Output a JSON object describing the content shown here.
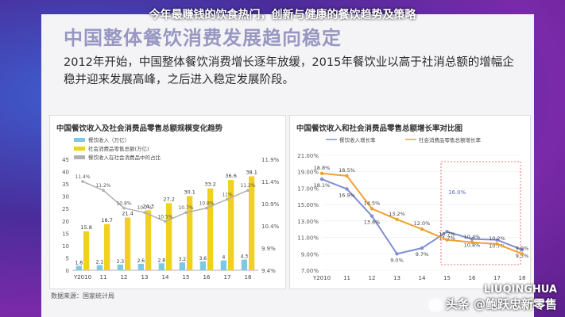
{
  "page": {
    "overlay_title": "今年最赚钱的饮食热门，创新与健康的餐饮趋势及策略",
    "slide_header": "中国整体餐饮消费发展趋向稳定",
    "slide_body": "2012年开始，中国整体餐饮消费增长逐年放缓，2015年餐饮业以高于社消总额的增幅企稳并迎来发展高峰，之后进入稳定发展阶段。",
    "source": "数据来源：国家统计局",
    "watermark_brand": "LIUQINGHUA",
    "watermark_text": "头条 @鲍跃忠新零售"
  },
  "chart_data": [
    {
      "type": "bar",
      "title": "中国餐饮收入及社会消费品零售总额规模变化趋势",
      "categories": [
        "Y2010",
        "11",
        "12",
        "13",
        "14",
        "15",
        "16",
        "17",
        "18"
      ],
      "series": [
        {
          "name": "餐饮收入（万亿）",
          "color": "#7ec8e3",
          "values": [
            1.8,
            2.1,
            2.3,
            2.6,
            2.8,
            3.2,
            3.6,
            4.0,
            4.3
          ]
        },
        {
          "name": "社会消费品零售总额(万亿)",
          "color": "#f0d020",
          "values": [
            15.8,
            18.7,
            21.4,
            24.3,
            27.2,
            30.1,
            33.2,
            36.6,
            38.1
          ]
        },
        {
          "name": "餐饮收入在社会消费品中的占比",
          "color": "#b0b0b0",
          "values": [
            11.4,
            11.2,
            10.8,
            10.7,
            10.5,
            10.7,
            10.8,
            11.0,
            11.2
          ]
        }
      ],
      "y_ticks_left": [
        "0",
        "5",
        "10",
        "15",
        "20",
        "25",
        "30",
        "35",
        "40",
        "45"
      ],
      "y_ticks_right": [
        "9.4%",
        "9.9%",
        "10.4%",
        "10.9%",
        "11.4%",
        "11.9%"
      ],
      "ylim": [
        0,
        45
      ],
      "y2lim": [
        9.4,
        11.9
      ]
    },
    {
      "type": "line",
      "title": "中国餐饮收入和社会消费品零售总额增长率对比图",
      "categories": [
        "Y2010",
        "11",
        "12",
        "13",
        "14",
        "15",
        "16",
        "17",
        "18"
      ],
      "series": [
        {
          "name": "餐饮收入增长率",
          "color": "#7f8fd0",
          "values": [
            18.1,
            16.9,
            13.6,
            9.0,
            9.7,
            11.7,
            10.8,
            10.7,
            9.5
          ]
        },
        {
          "name": "社会消费品零售总额增长率",
          "color": "#f0a030",
          "values": [
            18.8,
            18.5,
            14.5,
            13.2,
            12.0,
            10.7,
            10.4,
            10.2,
            9.0
          ]
        }
      ],
      "annotation": "16.0%",
      "y_ticks": [
        "7.00%",
        "9.00%",
        "11.00%",
        "13.00%",
        "15.00%",
        "17.00%",
        "19.00%",
        "21.00%"
      ],
      "ylim": [
        7,
        21
      ]
    }
  ]
}
